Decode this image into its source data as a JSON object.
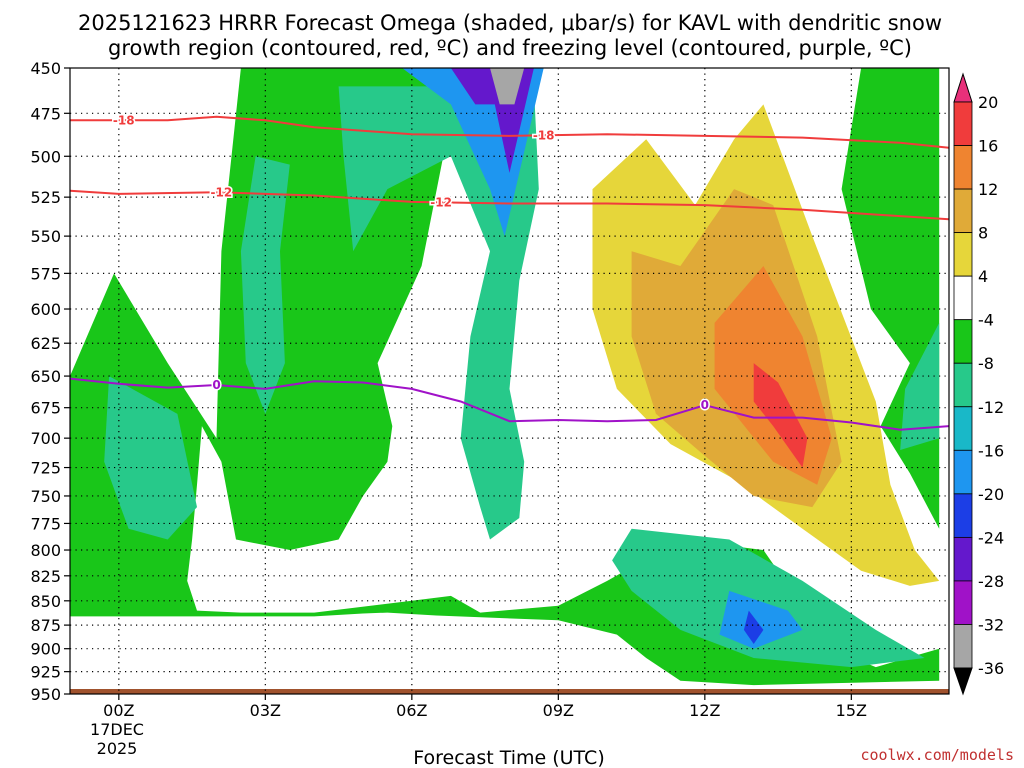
{
  "chart_data": {
    "type": "heatmap",
    "title_line1": "2025121623 HRRR Forecast Omega (shaded, μbar/s) for KAVL with dendritic snow",
    "title_line2": "growth region (contoured, red, ºC) and freezing level (contoured, purple, ºC)",
    "xlabel": "Forecast Time (UTC)",
    "x_ticks": [
      "00Z",
      "03Z",
      "06Z",
      "09Z",
      "12Z",
      "15Z"
    ],
    "x_tick_hours": [
      0,
      3,
      6,
      9,
      12,
      15
    ],
    "x_date_line1": "17DEC",
    "x_date_line2": "2025",
    "xlim": [
      -1,
      17
    ],
    "y_ticks": [
      450,
      475,
      500,
      525,
      550,
      575,
      600,
      625,
      650,
      675,
      700,
      725,
      750,
      775,
      800,
      825,
      850,
      875,
      900,
      925,
      950
    ],
    "ylim": [
      450,
      950
    ],
    "y_scale": "log-pressure",
    "grid": "dotted",
    "colorbar": {
      "labels": [
        "20",
        "16",
        "12",
        "8",
        "4",
        "-4",
        "-8",
        "-12",
        "-16",
        "-20",
        "-24",
        "-28",
        "-32",
        "-36"
      ],
      "bands": [
        {
          "range": [
            20,
            99
          ],
          "color": "#e8307a"
        },
        {
          "range": [
            16,
            20
          ],
          "color": "#f03c3c"
        },
        {
          "range": [
            12,
            16
          ],
          "color": "#ef8430"
        },
        {
          "range": [
            8,
            12
          ],
          "color": "#e0aa38"
        },
        {
          "range": [
            4,
            8
          ],
          "color": "#e6d63a"
        },
        {
          "range": [
            -4,
            4
          ],
          "color": "#ffffff"
        },
        {
          "range": [
            -8,
            -4
          ],
          "color": "#19c619"
        },
        {
          "range": [
            -12,
            -8
          ],
          "color": "#27c98a"
        },
        {
          "range": [
            -16,
            -12
          ],
          "color": "#19b8c8"
        },
        {
          "range": [
            -20,
            -16
          ],
          "color": "#1e96f0"
        },
        {
          "range": [
            -24,
            -20
          ],
          "color": "#1c3ee6"
        },
        {
          "range": [
            -28,
            -24
          ],
          "color": "#6418cc"
        },
        {
          "range": [
            -32,
            -28
          ],
          "color": "#a012c8"
        },
        {
          "range": [
            -36,
            -32
          ],
          "color": "#a6a6a6"
        },
        {
          "range": [
            -99,
            -36
          ],
          "color": "#000000"
        }
      ]
    },
    "omega_features": [
      {
        "name": "lower green band",
        "level": "-4",
        "points": [
          [
            -1,
            650
          ],
          [
            -0.1,
            575
          ],
          [
            1,
            640
          ],
          [
            2,
            700
          ],
          [
            2.1,
            560
          ],
          [
            2.5,
            450
          ],
          [
            7,
            450
          ],
          [
            6.2,
            570
          ],
          [
            5.3,
            640
          ],
          [
            5.6,
            690
          ],
          [
            5.5,
            720
          ],
          [
            5,
            750
          ],
          [
            4.5,
            790
          ],
          [
            3.5,
            800
          ],
          [
            2.4,
            790
          ],
          [
            2.1,
            720
          ],
          [
            1.7,
            690
          ],
          [
            1.6,
            740
          ],
          [
            1.5,
            790
          ],
          [
            1.4,
            830
          ],
          [
            1.6,
            860
          ],
          [
            2.5,
            862
          ],
          [
            4,
            862
          ],
          [
            6,
            850
          ],
          [
            6.8,
            845
          ],
          [
            7.4,
            862
          ],
          [
            9,
            855
          ],
          [
            10,
            830
          ],
          [
            11.5,
            790
          ],
          [
            13.2,
            800
          ],
          [
            14.6,
            900
          ],
          [
            15.5,
            920
          ],
          [
            16.8,
            900
          ],
          [
            16.8,
            935
          ],
          [
            13,
            940
          ],
          [
            11.5,
            935
          ],
          [
            10.8,
            910
          ],
          [
            10.2,
            885
          ],
          [
            9,
            870
          ],
          [
            6.5,
            865
          ],
          [
            5.5,
            862
          ],
          [
            5,
            863
          ],
          [
            4,
            866
          ],
          [
            2,
            866
          ],
          [
            -1,
            866
          ]
        ]
      },
      {
        "name": "early cyan area",
        "level": "-8",
        "points": [
          [
            -0.2,
            650
          ],
          [
            1.2,
            680
          ],
          [
            1.6,
            760
          ],
          [
            1,
            790
          ],
          [
            0.2,
            780
          ],
          [
            -0.3,
            720
          ]
        ]
      },
      {
        "name": "upper cyan column",
        "level": "-8",
        "points": [
          [
            2.8,
            500
          ],
          [
            3.5,
            505
          ],
          [
            3.3,
            560
          ],
          [
            3.4,
            640
          ],
          [
            3,
            680
          ],
          [
            2.6,
            640
          ],
          [
            2.5,
            560
          ]
        ]
      },
      {
        "name": "central cyan column",
        "level": "-8",
        "points": [
          [
            4.5,
            460
          ],
          [
            8.5,
            460
          ],
          [
            8.6,
            520
          ],
          [
            8.2,
            580
          ],
          [
            8,
            660
          ],
          [
            8.3,
            720
          ],
          [
            8.2,
            770
          ],
          [
            7.6,
            790
          ],
          [
            7.4,
            760
          ],
          [
            7,
            700
          ],
          [
            7.2,
            620
          ],
          [
            7.6,
            560
          ],
          [
            6.8,
            500
          ],
          [
            5.5,
            520
          ],
          [
            4.8,
            560
          ],
          [
            4.6,
            500
          ]
        ]
      },
      {
        "name": "central deep blue",
        "level": "-16",
        "points": [
          [
            5.8,
            450
          ],
          [
            8.7,
            450
          ],
          [
            8.2,
            510
          ],
          [
            7.9,
            550
          ],
          [
            7.6,
            520
          ],
          [
            6.8,
            470
          ]
        ]
      },
      {
        "name": "central purple core",
        "level": "-24",
        "points": [
          [
            6.8,
            450
          ],
          [
            8.5,
            450
          ],
          [
            8,
            510
          ],
          [
            7.7,
            470
          ],
          [
            7.3,
            470
          ]
        ]
      },
      {
        "name": "central gray core",
        "level": "-32",
        "points": [
          [
            7.6,
            450
          ],
          [
            8.3,
            450
          ],
          [
            8.1,
            470
          ],
          [
            7.8,
            470
          ]
        ]
      },
      {
        "name": "lower cyan area",
        "level": "-8",
        "points": [
          [
            10.5,
            780
          ],
          [
            12.5,
            790
          ],
          [
            14,
            830
          ],
          [
            15.5,
            880
          ],
          [
            16.5,
            910
          ],
          [
            15,
            920
          ],
          [
            13,
            910
          ],
          [
            11.5,
            880
          ],
          [
            10.5,
            840
          ],
          [
            10.1,
            810
          ]
        ]
      },
      {
        "name": "lower blue area",
        "level": "-16",
        "points": [
          [
            12.5,
            840
          ],
          [
            13.7,
            860
          ],
          [
            14,
            880
          ],
          [
            13,
            900
          ],
          [
            12.3,
            885
          ]
        ]
      },
      {
        "name": "lower dark blue spot",
        "level": "-20",
        "points": [
          [
            12.9,
            860
          ],
          [
            13.2,
            880
          ],
          [
            13,
            895
          ],
          [
            12.8,
            880
          ]
        ]
      },
      {
        "name": "right green band",
        "level": "-4",
        "points": [
          [
            15.2,
            450
          ],
          [
            16.8,
            450
          ],
          [
            16.8,
            780
          ],
          [
            16.2,
            730
          ],
          [
            15.6,
            690
          ],
          [
            16.2,
            640
          ],
          [
            15.4,
            600
          ],
          [
            14.8,
            520
          ]
        ]
      },
      {
        "name": "right cyan area",
        "level": "-8",
        "points": [
          [
            16.8,
            610
          ],
          [
            16.8,
            700
          ],
          [
            16,
            710
          ],
          [
            16.1,
            660
          ]
        ]
      },
      {
        "name": "yellow ascent",
        "level": "4",
        "points": [
          [
            9.7,
            520
          ],
          [
            10.8,
            490
          ],
          [
            11.8,
            530
          ],
          [
            12.6,
            490
          ],
          [
            13.2,
            470
          ],
          [
            14.2,
            550
          ],
          [
            15.5,
            670
          ],
          [
            15.8,
            740
          ],
          [
            16.3,
            800
          ],
          [
            16.8,
            830
          ],
          [
            16.2,
            835
          ],
          [
            15.2,
            820
          ],
          [
            14,
            780
          ],
          [
            12.6,
            735
          ],
          [
            11.3,
            705
          ],
          [
            10.2,
            660
          ],
          [
            9.7,
            600
          ]
        ]
      },
      {
        "name": "orange ascent",
        "level": "8",
        "points": [
          [
            10.5,
            560
          ],
          [
            11.5,
            570
          ],
          [
            12.6,
            520
          ],
          [
            13.4,
            530
          ],
          [
            14.3,
            620
          ],
          [
            14.8,
            720
          ],
          [
            14.2,
            760
          ],
          [
            13,
            750
          ],
          [
            12,
            715
          ],
          [
            11,
            680
          ],
          [
            10.5,
            620
          ]
        ]
      },
      {
        "name": "deep orange ascent",
        "level": "12",
        "points": [
          [
            12.2,
            610
          ],
          [
            13.2,
            570
          ],
          [
            14,
            620
          ],
          [
            14.6,
            700
          ],
          [
            14.3,
            740
          ],
          [
            13.4,
            720
          ],
          [
            12.2,
            660
          ]
        ]
      },
      {
        "name": "red ascent core",
        "level": "16",
        "points": [
          [
            13,
            640
          ],
          [
            13.5,
            655
          ],
          [
            14.1,
            700
          ],
          [
            14,
            725
          ],
          [
            13.4,
            690
          ],
          [
            13,
            670
          ]
        ]
      }
    ],
    "dgz_contours": [
      {
        "label": "-18",
        "label_x": 0.1,
        "label_at": [
          0.1,
          -5
        ],
        "points": [
          [
            -1,
            479
          ],
          [
            1,
            479
          ],
          [
            2,
            477
          ],
          [
            3,
            479
          ],
          [
            4,
            483
          ],
          [
            6,
            487
          ],
          [
            8,
            488
          ],
          [
            10,
            487
          ],
          [
            12,
            488
          ],
          [
            14,
            489
          ],
          [
            16,
            492
          ],
          [
            17,
            495
          ]
        ]
      },
      {
        "label": "-18",
        "label_x": 8.7,
        "points": []
      },
      {
        "label": "-12",
        "label_x": 2.1,
        "points": [
          [
            -1,
            521
          ],
          [
            0,
            523
          ],
          [
            2,
            522
          ],
          [
            4,
            524
          ],
          [
            6,
            528
          ],
          [
            8,
            529
          ],
          [
            10,
            529
          ],
          [
            12,
            530
          ],
          [
            14,
            533
          ],
          [
            16,
            537
          ],
          [
            17,
            539
          ]
        ]
      },
      {
        "label": "-12",
        "label_x": 6.6,
        "points": []
      }
    ],
    "freezing_level": {
      "label": "0",
      "label_x_positions": [
        2.0,
        12.0
      ],
      "points": [
        [
          -1,
          652
        ],
        [
          0,
          656
        ],
        [
          1,
          659
        ],
        [
          2,
          657
        ],
        [
          3,
          660
        ],
        [
          4,
          654
        ],
        [
          5,
          655
        ],
        [
          6,
          660
        ],
        [
          7,
          670
        ],
        [
          8,
          686
        ],
        [
          9,
          685
        ],
        [
          10,
          686
        ],
        [
          11,
          685
        ],
        [
          12,
          673
        ],
        [
          13,
          683
        ],
        [
          14,
          683
        ],
        [
          15,
          687
        ],
        [
          16,
          693
        ],
        [
          17,
          690
        ]
      ]
    },
    "surface_strip_color": "#a0522d"
  },
  "credit": "coolwx.com/models",
  "colors": {
    "dgz_line": "#f03c3c",
    "freezing_line": "#a012c8",
    "grid": "#000000"
  }
}
